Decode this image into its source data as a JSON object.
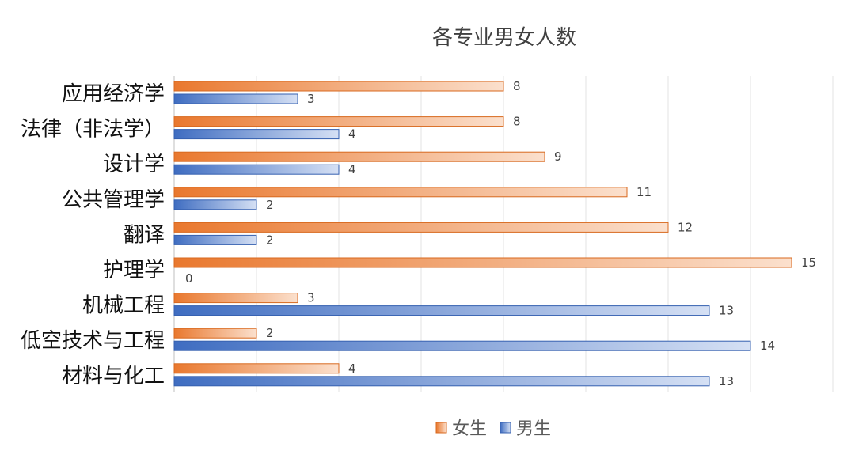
{
  "chart_data": {
    "type": "bar",
    "orientation": "horizontal",
    "title": "各专业男女人数",
    "categories": [
      "应用经济学",
      "法律（非法学）",
      "设计学",
      "公共管理学",
      "翻译",
      "护理学",
      "机械工程",
      "低空技术与工程",
      "材料与化工"
    ],
    "series": [
      {
        "name": "女生",
        "values": [
          8,
          8,
          9,
          11,
          12,
          15,
          3,
          2,
          4
        ],
        "color": "#ED7D31"
      },
      {
        "name": "男生",
        "values": [
          3,
          4,
          4,
          2,
          2,
          0,
          13,
          14,
          13
        ],
        "color": "#4472C4"
      }
    ],
    "xlim": [
      0,
      16
    ],
    "grid": true,
    "legend_position": "bottom",
    "data_labels": true
  }
}
